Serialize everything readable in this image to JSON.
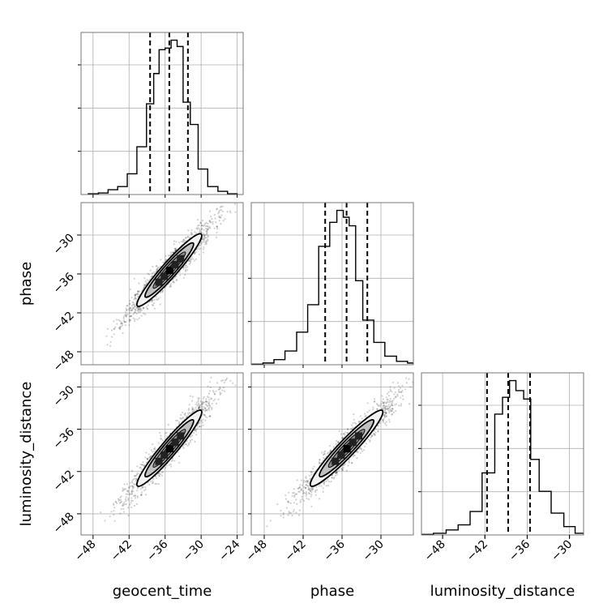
{
  "chart_data": {
    "type": "corner",
    "parameters": [
      {
        "name": "geocent_time",
        "label": "geocent_time"
      },
      {
        "name": "phase",
        "label": "phase"
      },
      {
        "name": "luminosity_distance",
        "label": "luminosity_distance"
      }
    ],
    "grid": true,
    "axes": {
      "geocent_time": {
        "range": [
          -50,
          -23
        ],
        "ticks": [
          -48,
          -42,
          -36,
          -30,
          -24
        ],
        "tick_labels": [
          "−48",
          "−42",
          "−36",
          "−30",
          "−24"
        ]
      },
      "phase": {
        "range": [
          -50,
          -25
        ],
        "ticks": [
          -48,
          -42,
          -36,
          -30
        ],
        "tick_labels": [
          "−48",
          "−42",
          "−36",
          "−30"
        ]
      },
      "luminosity_distance": {
        "range": [
          -51,
          -28
        ],
        "ticks": [
          -48,
          -42,
          -36,
          -30
        ],
        "tick_labels": [
          "−48",
          "−42",
          "−36",
          "−30"
        ]
      }
    },
    "histograms": [
      {
        "parameter": "geocent_time",
        "bin_edges": [
          -48.8,
          -47.1,
          -45.5,
          -43.9,
          -42.3,
          -40.7,
          -39.1,
          -37.9,
          -37.0,
          -36.0,
          -35.0,
          -34.0,
          -33.0,
          -31.8,
          -30.5,
          -28.9,
          -27.2,
          -25.6,
          -24.0
        ],
        "counts": [
          0.005,
          0.01,
          0.03,
          0.05,
          0.13,
          0.3,
          0.57,
          0.76,
          0.91,
          0.92,
          0.97,
          0.93,
          0.58,
          0.44,
          0.16,
          0.05,
          0.02,
          0.005
        ],
        "quantiles": [
          -38.5,
          -35.3,
          -32.2
        ]
      },
      {
        "parameter": "phase",
        "bin_edges": [
          -50,
          -48.2,
          -46.5,
          -44.8,
          -43.0,
          -41.3,
          -39.6,
          -37.9,
          -36.8,
          -35.8,
          -34.9,
          -33.9,
          -32.8,
          -31.1,
          -29.4,
          -27.6,
          -25.9,
          -25.0
        ],
        "counts": [
          0.003,
          0.01,
          0.03,
          0.08,
          0.19,
          0.35,
          0.69,
          0.83,
          0.9,
          0.86,
          0.81,
          0.49,
          0.26,
          0.13,
          0.05,
          0.02,
          0.01
        ],
        "quantiles": [
          -38.6,
          -35.3,
          -32.1
        ]
      },
      {
        "parameter": "luminosity_distance",
        "bin_edges": [
          -51.0,
          -49.3,
          -47.5,
          -45.8,
          -44.1,
          -42.4,
          -40.6,
          -39.5,
          -38.5,
          -37.6,
          -36.5,
          -35.5,
          -34.3,
          -32.6,
          -30.8,
          -29.2,
          -28.0
        ],
        "counts": [
          0.003,
          0.01,
          0.03,
          0.06,
          0.14,
          0.37,
          0.72,
          0.82,
          0.92,
          0.86,
          0.81,
          0.45,
          0.26,
          0.13,
          0.05,
          0.01
        ],
        "quantiles": [
          -41.7,
          -38.7,
          -35.6
        ]
      }
    ],
    "pairs": [
      {
        "x": "geocent_time",
        "y": "phase",
        "center": [
          -35.3,
          -35.4
        ],
        "sigma": [
          2.7,
          2.8
        ],
        "rho": 0.95,
        "n_points": 1400,
        "seed": 11
      },
      {
        "x": "geocent_time",
        "y": "luminosity_distance",
        "center": [
          -35.3,
          -38.7
        ],
        "sigma": [
          2.7,
          2.7
        ],
        "rho": 0.95,
        "n_points": 1400,
        "seed": 23
      },
      {
        "x": "phase",
        "y": "luminosity_distance",
        "center": [
          -35.3,
          -38.7
        ],
        "sigma": [
          2.8,
          2.7
        ],
        "rho": 0.95,
        "n_points": 1400,
        "seed": 37
      }
    ],
    "contour_levels": [
      0.118,
      0.393,
      0.675,
      0.865
    ],
    "contour_fill": [
      "#f2f2f2",
      "#c0c0c0",
      "#8a8a8a",
      "#4a4a4a"
    ]
  }
}
